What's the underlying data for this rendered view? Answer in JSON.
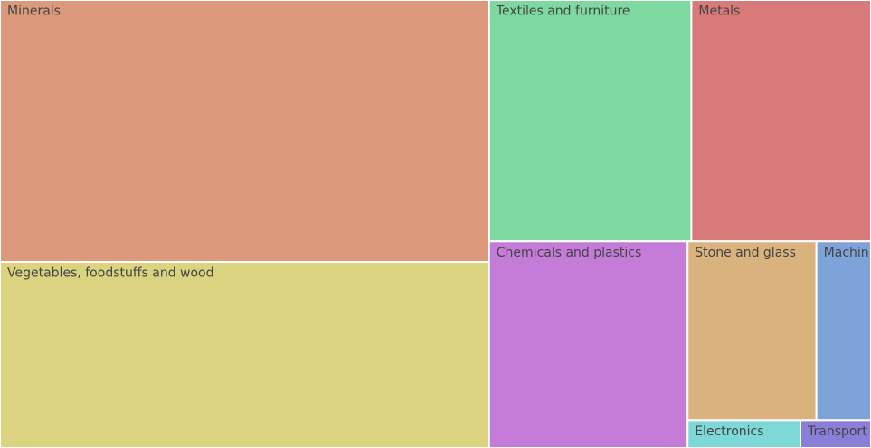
{
  "chart_data": {
    "type": "treemap",
    "categories": [
      "Minerals",
      "Vegetables, foodstuffs and wood",
      "Textiles and furniture",
      "Metals",
      "Chemicals and plastics",
      "Stone and glass",
      "Machinery",
      "Electronics",
      "Transport"
    ],
    "values": [
      32.8,
      23.3,
      12.5,
      11.1,
      10.5,
      5.9,
      2.5,
      0.8,
      0.5
    ],
    "colors": [
      "#dc997c",
      "#dbd37f",
      "#7ed9a0",
      "#d87a7a",
      "#c47cd8",
      "#d9b27d",
      "#7ea3d9",
      "#7ed9d6",
      "#8b7ed9"
    ]
  }
}
